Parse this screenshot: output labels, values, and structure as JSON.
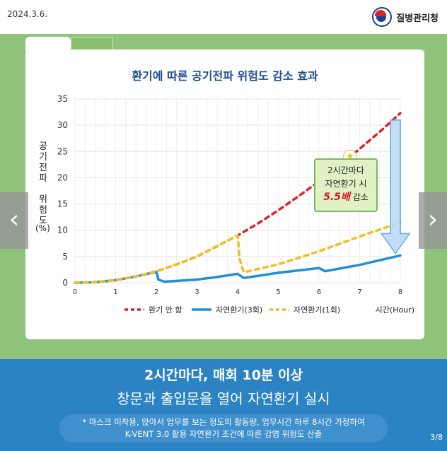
{
  "header": {
    "date": "2024.3.6.",
    "agency": "질병관리청"
  },
  "callout": {
    "line1": "2시간마다",
    "line2": "자연환기 시",
    "emph": "5.5배",
    "tail": "감소"
  },
  "bottom": {
    "headline": "2시간마다, 매회 10분 이상",
    "subline": "창문과 출입문을 열어 자연환기 실시",
    "note1": "* 마스크 미착용, 앉아서 업무를 보는 정도의 활동량, 업무시간 하루 8시간 가정하여",
    "note2": "K-VENT 3.0 활용 자연환기 조건에 따른 감염 위험도 산출",
    "page": "3",
    "total": "/8"
  },
  "chart_data": {
    "type": "line",
    "title": "환기에 따른 공기전파 위험도 감소 효과",
    "ylabel": "공기전파 위험도 (%)",
    "xlabel": "시간(Hour)",
    "xlim": [
      0,
      8
    ],
    "ylim": [
      0,
      35
    ],
    "xticks": [
      0,
      1,
      2,
      3,
      4,
      5,
      6,
      7,
      8
    ],
    "yticks": [
      0,
      5,
      10,
      15,
      20,
      25,
      30,
      35
    ],
    "grid": true,
    "legend_position": "bottom",
    "series": [
      {
        "name": "환기 안 함",
        "color": "#d62728",
        "dash": true,
        "points": [
          [
            0,
            0
          ],
          [
            0.5,
            0.1
          ],
          [
            1,
            0.5
          ],
          [
            1.5,
            1.2
          ],
          [
            2,
            2.2
          ],
          [
            2.5,
            3.5
          ],
          [
            3,
            5
          ],
          [
            3.5,
            7
          ],
          [
            4,
            9
          ],
          [
            4.5,
            11.3
          ],
          [
            5,
            13.8
          ],
          [
            5.5,
            16.5
          ],
          [
            6,
            19.3
          ],
          [
            6.5,
            22.3
          ],
          [
            7,
            25.5
          ],
          [
            7.5,
            28.8
          ],
          [
            8,
            32.3
          ]
        ]
      },
      {
        "name": "자연환기(3회)",
        "color": "#1f8fd6",
        "dash": false,
        "points": [
          [
            0,
            0
          ],
          [
            0.5,
            0.1
          ],
          [
            1,
            0.5
          ],
          [
            1.5,
            1.2
          ],
          [
            2,
            2.1
          ],
          [
            2.05,
            0.6
          ],
          [
            2.2,
            0.2
          ],
          [
            3,
            0.6
          ],
          [
            3.5,
            1.1
          ],
          [
            4,
            1.7
          ],
          [
            4.15,
            0.9
          ],
          [
            5,
            1.9
          ],
          [
            6,
            2.8
          ],
          [
            6.15,
            2.2
          ],
          [
            7,
            3.4
          ],
          [
            8,
            5.2
          ]
        ]
      },
      {
        "name": "자연환기(1회)",
        "color": "#f0c020",
        "dash": true,
        "points": [
          [
            0,
            0
          ],
          [
            0.5,
            0.1
          ],
          [
            1,
            0.5
          ],
          [
            1.5,
            1.2
          ],
          [
            2,
            2.2
          ],
          [
            2.5,
            3.5
          ],
          [
            3,
            5
          ],
          [
            3.5,
            7
          ],
          [
            4,
            9
          ],
          [
            4.05,
            4.5
          ],
          [
            4.15,
            2.0
          ],
          [
            5,
            3.5
          ],
          [
            6,
            6
          ],
          [
            7,
            8.8
          ],
          [
            8,
            11.5
          ]
        ]
      }
    ]
  }
}
